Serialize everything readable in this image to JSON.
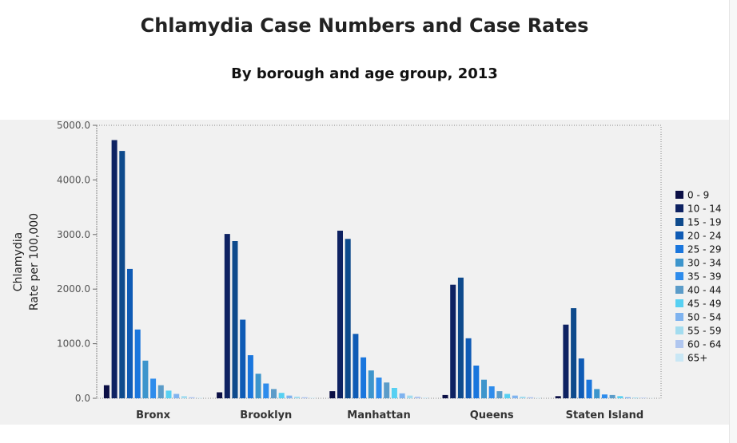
{
  "chart_data": {
    "type": "bar",
    "title": "Chlamydia Case Numbers and Case Rates",
    "subtitle": "By borough and age group, 2013",
    "ylabel": [
      "Chlamydia",
      "Rate per 100,000"
    ],
    "xlabel": "",
    "ylim": [
      0,
      5000
    ],
    "yticks": [
      "0.0",
      "1000.0",
      "2000.0",
      "3000.0",
      "4000.0",
      "5000.0"
    ],
    "ytick_values": [
      0,
      1000,
      2000,
      3000,
      4000,
      5000
    ],
    "grid": false,
    "legend_position": "right",
    "categories": [
      "Bronx",
      "Brooklyn",
      "Manhattan",
      "Queens",
      "Staten Island"
    ],
    "series": [
      {
        "name": "0 - 9",
        "color": "#0b0f45",
        "values": [
          240,
          110,
          130,
          60,
          40
        ]
      },
      {
        "name": "10 - 14",
        "color": "#0e2262",
        "values": [
          4730,
          3010,
          3070,
          2080,
          1350
        ]
      },
      {
        "name": "15 - 19",
        "color": "#0e4a8c",
        "values": [
          4530,
          2880,
          2920,
          2210,
          1650
        ]
      },
      {
        "name": "20 - 24",
        "color": "#0f5bb5",
        "values": [
          2370,
          1440,
          1180,
          1100,
          730
        ]
      },
      {
        "name": "25 - 29",
        "color": "#1a76dd",
        "values": [
          1260,
          790,
          750,
          600,
          340
        ]
      },
      {
        "name": "30 - 34",
        "color": "#3d95cc",
        "values": [
          690,
          450,
          510,
          340,
          170
        ]
      },
      {
        "name": "35 - 39",
        "color": "#2e8cec",
        "values": [
          360,
          270,
          380,
          220,
          70
        ]
      },
      {
        "name": "40 - 44",
        "color": "#5b9cc9",
        "values": [
          240,
          170,
          290,
          130,
          60
        ]
      },
      {
        "name": "45 - 49",
        "color": "#57d0f2",
        "values": [
          140,
          100,
          190,
          80,
          40
        ]
      },
      {
        "name": "50 - 54",
        "color": "#7fb3ef",
        "values": [
          80,
          50,
          90,
          50,
          20
        ]
      },
      {
        "name": "55 - 59",
        "color": "#a3dcef",
        "values": [
          40,
          30,
          50,
          30,
          15
        ]
      },
      {
        "name": "60 - 64",
        "color": "#b0c6ef",
        "values": [
          20,
          20,
          30,
          20,
          10
        ]
      },
      {
        "name": "65+",
        "color": "#c9e7f5",
        "values": [
          10,
          10,
          15,
          10,
          5
        ]
      }
    ]
  }
}
